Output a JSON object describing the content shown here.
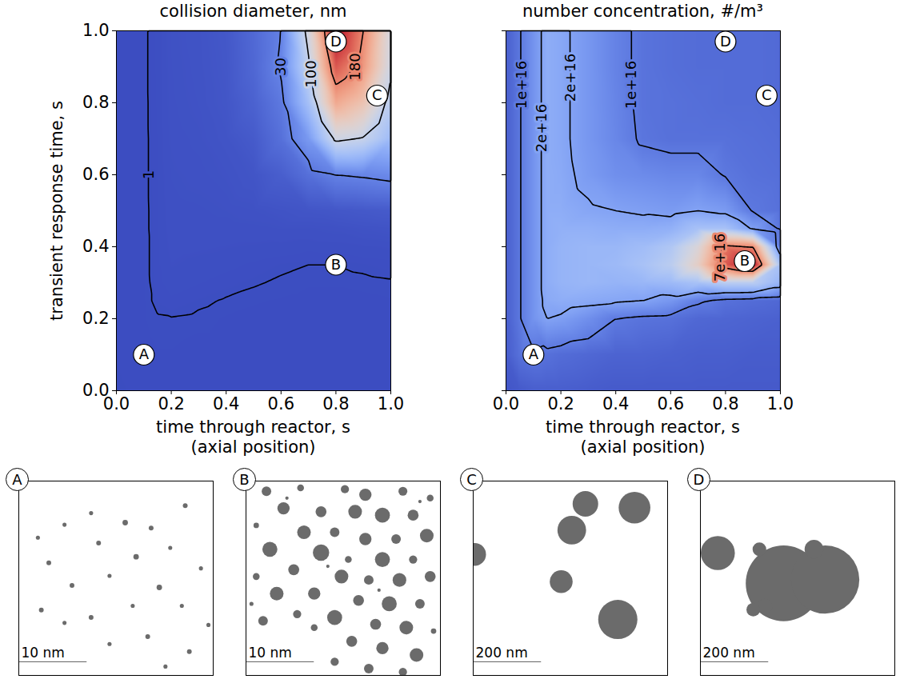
{
  "chart_data": [
    {
      "type": "heatmap",
      "title": "collision diameter, nm",
      "xlabel": "time through reactor, s\n(axial position)",
      "ylabel": "transient response time, s",
      "xlim": [
        0,
        1
      ],
      "ylim": [
        0,
        1
      ],
      "xticks": [
        {
          "value": 0,
          "label": "0.0"
        },
        0.2,
        0.4,
        0.6,
        0.8,
        {
          "value": 1,
          "label": "1.0"
        }
      ],
      "yticks": [
        {
          "value": 0,
          "label": "0.0"
        },
        0.2,
        0.4,
        0.6,
        0.8,
        {
          "value": 1,
          "label": "1.0"
        }
      ],
      "x": [
        0,
        0.05,
        0.1,
        0.15,
        0.2,
        0.3,
        0.4,
        0.5,
        0.6,
        0.7,
        0.8,
        0.9,
        1
      ],
      "y": [
        0,
        0.1,
        0.2,
        0.25,
        0.3,
        0.35,
        0.4,
        0.45,
        0.5,
        0.6,
        0.7,
        0.8,
        0.9,
        1
      ],
      "values": [
        [
          0.3,
          0.4,
          0.5,
          0.5,
          0.5,
          0.5,
          0.5,
          0.5,
          0.5,
          0.5,
          0.5,
          0.5,
          0.5
        ],
        [
          0.4,
          0.6,
          0.7,
          0.8,
          0.8,
          0.7,
          0.7,
          0.6,
          0.6,
          0.6,
          0.6,
          0.6,
          0.6
        ],
        [
          0.5,
          0.7,
          0.8,
          0.95,
          0.97,
          0.9,
          0.8,
          0.75,
          0.7,
          0.7,
          0.7,
          0.7,
          0.7
        ],
        [
          0.5,
          0.7,
          0.8,
          1.15,
          1.3,
          1.1,
          0.95,
          0.85,
          0.8,
          0.75,
          0.75,
          0.75,
          0.8
        ],
        [
          0.5,
          0.75,
          0.8,
          1.25,
          1.6,
          1.4,
          1.2,
          1.05,
          0.93,
          0.85,
          0.85,
          0.9,
          0.95
        ],
        [
          0.55,
          0.75,
          0.8,
          1.3,
          1.9,
          1.7,
          1.5,
          1.3,
          1.1,
          1.0,
          1.0,
          1.1,
          1.2
        ],
        [
          0.55,
          0.75,
          0.8,
          1.3,
          2.1,
          2.0,
          1.9,
          1.8,
          1.7,
          1.5,
          1.6,
          1.8,
          2.0
        ],
        [
          0.55,
          0.75,
          0.8,
          1.35,
          2.2,
          2.2,
          2.2,
          2.3,
          2.5,
          2.5,
          2.8,
          3.5,
          4.0
        ],
        [
          0.6,
          0.8,
          0.8,
          1.35,
          2.3,
          2.4,
          2.6,
          3,
          4,
          5,
          6,
          7,
          8
        ],
        [
          0.6,
          0.8,
          0.8,
          1.4,
          2.5,
          2.8,
          3.5,
          5,
          10,
          20,
          30,
          32,
          35
        ],
        [
          0.6,
          0.8,
          0.8,
          1.4,
          2.7,
          3.2,
          4.5,
          8,
          20,
          45,
          105,
          98,
          70
        ],
        [
          0.6,
          0.8,
          0.8,
          1.45,
          2.9,
          3.6,
          5.5,
          12,
          25,
          75,
          160,
          140,
          90
        ],
        [
          0.6,
          0.8,
          0.8,
          1.5,
          3.0,
          3.8,
          6,
          15,
          32,
          95,
          200,
          170,
          105
        ],
        [
          0.6,
          0.8,
          0.8,
          1.5,
          3.1,
          4,
          6.5,
          16,
          30,
          110,
          230,
          180,
          110
        ]
      ],
      "zlim": [
        0,
        230
      ],
      "contour_labels": [
        {
          "value": 1,
          "label": "1",
          "x": 0.12,
          "y": 0.6
        },
        {
          "value": 30,
          "label": "30",
          "x": 0.6,
          "y": 0.9
        },
        {
          "value": 100,
          "label": "100",
          "x": 0.71,
          "y": 0.88
        },
        {
          "value": 180,
          "label": "180",
          "x": 0.87,
          "y": 0.9
        }
      ],
      "markers": {
        "labels": [
          "A",
          "B",
          "C",
          "D"
        ],
        "x": [
          0.1,
          0.8,
          0.95,
          0.8
        ],
        "y": [
          0.1,
          0.35,
          0.82,
          0.97
        ]
      }
    },
    {
      "type": "heatmap",
      "title": "number concentration, #/m³",
      "xlabel": "time through reactor, s\n(axial position)",
      "tick_labels": "x",
      "xlim": [
        0,
        1
      ],
      "ylim": [
        0,
        1
      ],
      "xticks": [
        {
          "value": 0,
          "label": "0.0"
        },
        0.2,
        0.4,
        0.6,
        0.8,
        {
          "value": 1,
          "label": "1.0"
        }
      ],
      "yticks": [
        0,
        0.2,
        0.4,
        0.6,
        0.8,
        1
      ],
      "x": [
        0,
        0.05,
        0.1,
        0.15,
        0.2,
        0.3,
        0.4,
        0.5,
        0.6,
        0.7,
        0.8,
        0.9,
        1
      ],
      "y": [
        0,
        0.1,
        0.2,
        0.25,
        0.3,
        0.35,
        0.4,
        0.45,
        0.5,
        0.6,
        0.7,
        0.8,
        0.9,
        1
      ],
      "values": [
        [
          2000000000000000.0,
          3000000000000000.0,
          4000000000000000.0,
          4000000000000000.0,
          4000000000000000.0,
          3500000000000000.0,
          3000000000000000.0,
          3000000000000000.0,
          3000000000000000.0,
          3000000000000000.0,
          3000000000000000.0,
          3000000000000000.0,
          3000000000000000.0
        ],
        [
          3500000000000000.0,
          8000000000000000.0,
          9000000000000000.0,
          8000000000000000.0,
          7000000000000000.0,
          6000000000000000.0,
          5000000000000000.0,
          5000000000000000.0,
          4500000000000000.0,
          4000000000000000.0,
          4000000000000000.0,
          3500000000000000.0,
          3500000000000000.0
        ],
        [
          4000000000000000.0,
          9500000000000000.0,
          1.6e+16,
          2e+16,
          1.9e+16,
          1.5e+16,
          1e+16,
          8500000000000000.0,
          8000000000000000.0,
          6000000000000000.0,
          5500000000000000.0,
          5000000000000000.0,
          4500000000000000.0
        ],
        [
          4000000000000000.0,
          9500000000000000.0,
          1.6e+16,
          2.2e+16,
          2.3e+16,
          2.2e+16,
          2.1e+16,
          2e+16,
          1.7e+16,
          1.1e+16,
          8000000000000000.0,
          7000000000000000.0,
          6000000000000000.0
        ],
        [
          4000000000000000.0,
          9500000000000000.0,
          1.6e+16,
          2.3e+16,
          2.5e+16,
          2.6e+16,
          2.5e+16,
          2.6e+16,
          2.7e+16,
          3e+16,
          3.5e+16,
          3.5e+16,
          2.5e+16
        ],
        [
          4000000000000000.0,
          9500000000000000.0,
          1.6e+16,
          2.3e+16,
          2.5e+16,
          2.6e+16,
          2.7e+16,
          3e+16,
          3.5e+16,
          5e+16,
          7.8e+16,
          9e+16,
          3e+16
        ],
        [
          4000000000000000.0,
          9500000000000000.0,
          1.6e+16,
          2.3e+16,
          2.5e+16,
          2.6e+16,
          2.6e+16,
          2.8e+16,
          3.2e+16,
          4.5e+16,
          7.3e+16,
          7e+16,
          1.1e+16
        ],
        [
          4000000000000000.0,
          9500000000000000.0,
          1.6e+16,
          2.3e+16,
          2.4e+16,
          2.4e+16,
          2.3e+16,
          2.3e+16,
          2.4e+16,
          3e+16,
          3e+16,
          1.9e+16,
          9000000000000000.0
        ],
        [
          4000000000000000.0,
          9500000000000000.0,
          1.6e+16,
          2.3e+16,
          2.3e+16,
          2.1e+16,
          2e+16,
          1.9e+16,
          1.8e+16,
          2e+16,
          1.8e+16,
          9500000000000000.0,
          8000000000000000.0
        ],
        [
          4000000000000000.0,
          9500000000000000.0,
          1.6e+16,
          2.3e+16,
          2.2e+16,
          1.8e+16,
          1.5e+16,
          1.4e+16,
          1.3e+16,
          1.3e+16,
          9500000000000000.0,
          8000000000000000.0,
          7500000000000000.0
        ],
        [
          4000000000000000.0,
          9500000000000000.0,
          1.6e+16,
          2.3e+16,
          2.15e+16,
          1.7e+16,
          1.3e+16,
          9000000000000000.0,
          8000000000000000.0,
          8000000000000000.0,
          8000000000000000.0,
          7500000000000000.0,
          7000000000000000.0
        ],
        [
          4000000000000000.0,
          9500000000000000.0,
          1.6e+16,
          2.3e+16,
          2.15e+16,
          1.7e+16,
          1.25e+16,
          8500000000000000.0,
          8000000000000000.0,
          7500000000000000.0,
          7000000000000000.0,
          7000000000000000.0,
          6500000000000000.0
        ],
        [
          4000000000000000.0,
          9500000000000000.0,
          1.6e+16,
          2.3e+16,
          2.15e+16,
          1.7e+16,
          1.2e+16,
          8500000000000000.0,
          7500000000000000.0,
          7000000000000000.0,
          7000000000000000.0,
          7000000000000000.0,
          6500000000000000.0
        ],
        [
          4000000000000000.0,
          9500000000000000.0,
          1.6e+16,
          2.3e+16,
          2.15e+16,
          1.7e+16,
          1.2e+16,
          8500000000000000.0,
          7500000000000000.0,
          7000000000000000.0,
          7000000000000000.0,
          7000000000000000.0,
          6500000000000000.0
        ]
      ],
      "zlim": [
        0,
        9e+16
      ],
      "contour_labels": [
        {
          "value": 1e+16,
          "label": "1e+16",
          "x": 0.058,
          "y": 0.85
        },
        {
          "value": 2e+16,
          "label": "2e+16",
          "x": 0.13,
          "y": 0.73
        },
        {
          "value": 2e+16,
          "label": "2e+16",
          "x": 0.235,
          "y": 0.87
        },
        {
          "value": 1e+16,
          "label": "1e+16",
          "x": 0.457,
          "y": 0.85
        },
        {
          "value": 7e+16,
          "label": "7e+16",
          "x": 0.78,
          "y": 0.37
        }
      ],
      "markers": {
        "labels": [
          "A",
          "B",
          "C",
          "D"
        ],
        "x": [
          0.1,
          0.87,
          0.95,
          0.8
        ],
        "y": [
          0.1,
          0.36,
          0.82,
          0.97
        ]
      }
    },
    {
      "type": "image",
      "label": "A",
      "tick_labels": false,
      "xlim": [
        0,
        28.5
      ],
      "ylim": [
        0,
        28.5
      ],
      "scale_bar": {
        "value": 10,
        "label": "10 nm"
      },
      "x": [
        24.4,
        10.6,
        15.6,
        6.7,
        19.4,
        2.8,
        11.7,
        22.2,
        17.2,
        4.4,
        26.7,
        13.3,
        7.8,
        20.6,
        23.9,
        3.3,
        16.7,
        10.6,
        27.8,
        6.7,
        18.9,
        13.3,
        25,
        21.5
      ],
      "y": [
        3.6,
        4.7,
        6.1,
        6.4,
        6.9,
        8.3,
        9.1,
        9.8,
        11.1,
        12,
        12.8,
        13.9,
        15.3,
        15.6,
        18.3,
        18.9,
        18.3,
        20,
        21.1,
        20.8,
        22.8,
        23.9,
        25,
        27.2
      ],
      "diameter": [
        0.7,
        0.6,
        0.8,
        0.6,
        0.7,
        0.6,
        0.7,
        0.6,
        0.8,
        0.7,
        0.6,
        0.6,
        0.7,
        0.8,
        0.6,
        0.7,
        0.6,
        0.7,
        0.6,
        0.6,
        0.7,
        0.6,
        0.7,
        0.6
      ]
    },
    {
      "type": "image",
      "label": "B",
      "tick_labels": false,
      "xlim": [
        0,
        28.5
      ],
      "ylim": [
        0,
        28.5
      ],
      "scale_bar": {
        "value": 10,
        "label": "10 nm"
      },
      "x": [
        3,
        8,
        14.5,
        17.5,
        23,
        27,
        5.5,
        11,
        16,
        20,
        24.5,
        1.5,
        8.5,
        13,
        17.5,
        22,
        26.5,
        3.5,
        11,
        15,
        20,
        24.5,
        7,
        1.5,
        14,
        18,
        22.5,
        27,
        4.5,
        10,
        16.5,
        21,
        25.5,
        7.5,
        13,
        19,
        23.5,
        2.5,
        27.5,
        10,
        15.5,
        20,
        25,
        13,
        18,
        23,
        0.8,
        6,
        12,
        19.5,
        25.5
      ],
      "y": [
        1.5,
        1,
        1.2,
        2,
        1.5,
        2.5,
        4,
        4.5,
        4.5,
        5,
        5,
        6.5,
        7.5,
        7.5,
        8.5,
        8.5,
        8,
        10,
        10.5,
        11.5,
        11.5,
        11.5,
        13,
        14,
        14,
        14.5,
        14.5,
        14,
        16.5,
        16.5,
        17.5,
        18,
        18,
        19.5,
        20,
        21,
        21.5,
        20.5,
        22,
        21.5,
        23.5,
        24.5,
        25.5,
        26.5,
        27.5,
        28,
        18,
        2.5,
        12.5,
        16,
        3
      ],
      "diameter": [
        1.4,
        1.0,
        1.2,
        1.8,
        1.3,
        1.0,
        1.8,
        1.6,
        2.0,
        2.2,
        1.6,
        0.8,
        2.0,
        1.4,
        1.8,
        1.4,
        2.0,
        2.2,
        2.4,
        1.0,
        2.2,
        1.2,
        1.6,
        1.0,
        2.0,
        1.4,
        2.0,
        1.6,
        2.0,
        1.8,
        1.6,
        2.2,
        1.4,
        1.2,
        2.2,
        1.6,
        2.0,
        1.4,
        0.8,
        1.0,
        1.6,
        1.8,
        2.0,
        1.2,
        1.4,
        1.2,
        0.6,
        0.5,
        0.5,
        0.5,
        0.5
      ]
    },
    {
      "type": "image",
      "label": "C",
      "tick_labels": false,
      "xlim": [
        0,
        570
      ],
      "ylim": [
        0,
        570
      ],
      "scale_bar": {
        "value": 200,
        "label": "200 nm"
      },
      "x": [
        329,
        473,
        289,
        258,
        424,
        4
      ],
      "y": [
        67,
        78,
        144,
        295,
        406,
        215
      ],
      "diameter": [
        75,
        93,
        84,
        67,
        115,
        67
      ]
    },
    {
      "type": "image",
      "label": "D",
      "tick_labels": false,
      "xlim": [
        0,
        570
      ],
      "ylim": [
        0,
        570
      ],
      "scale_bar": {
        "value": 200,
        "label": "200 nm"
      },
      "x": [
        51,
        173,
        244,
        366,
        333,
        155,
        189
      ],
      "y": [
        211,
        200,
        300,
        289,
        200,
        377,
        367
      ],
      "diameter": [
        100,
        40,
        222,
        200,
        55,
        40,
        44
      ]
    }
  ]
}
